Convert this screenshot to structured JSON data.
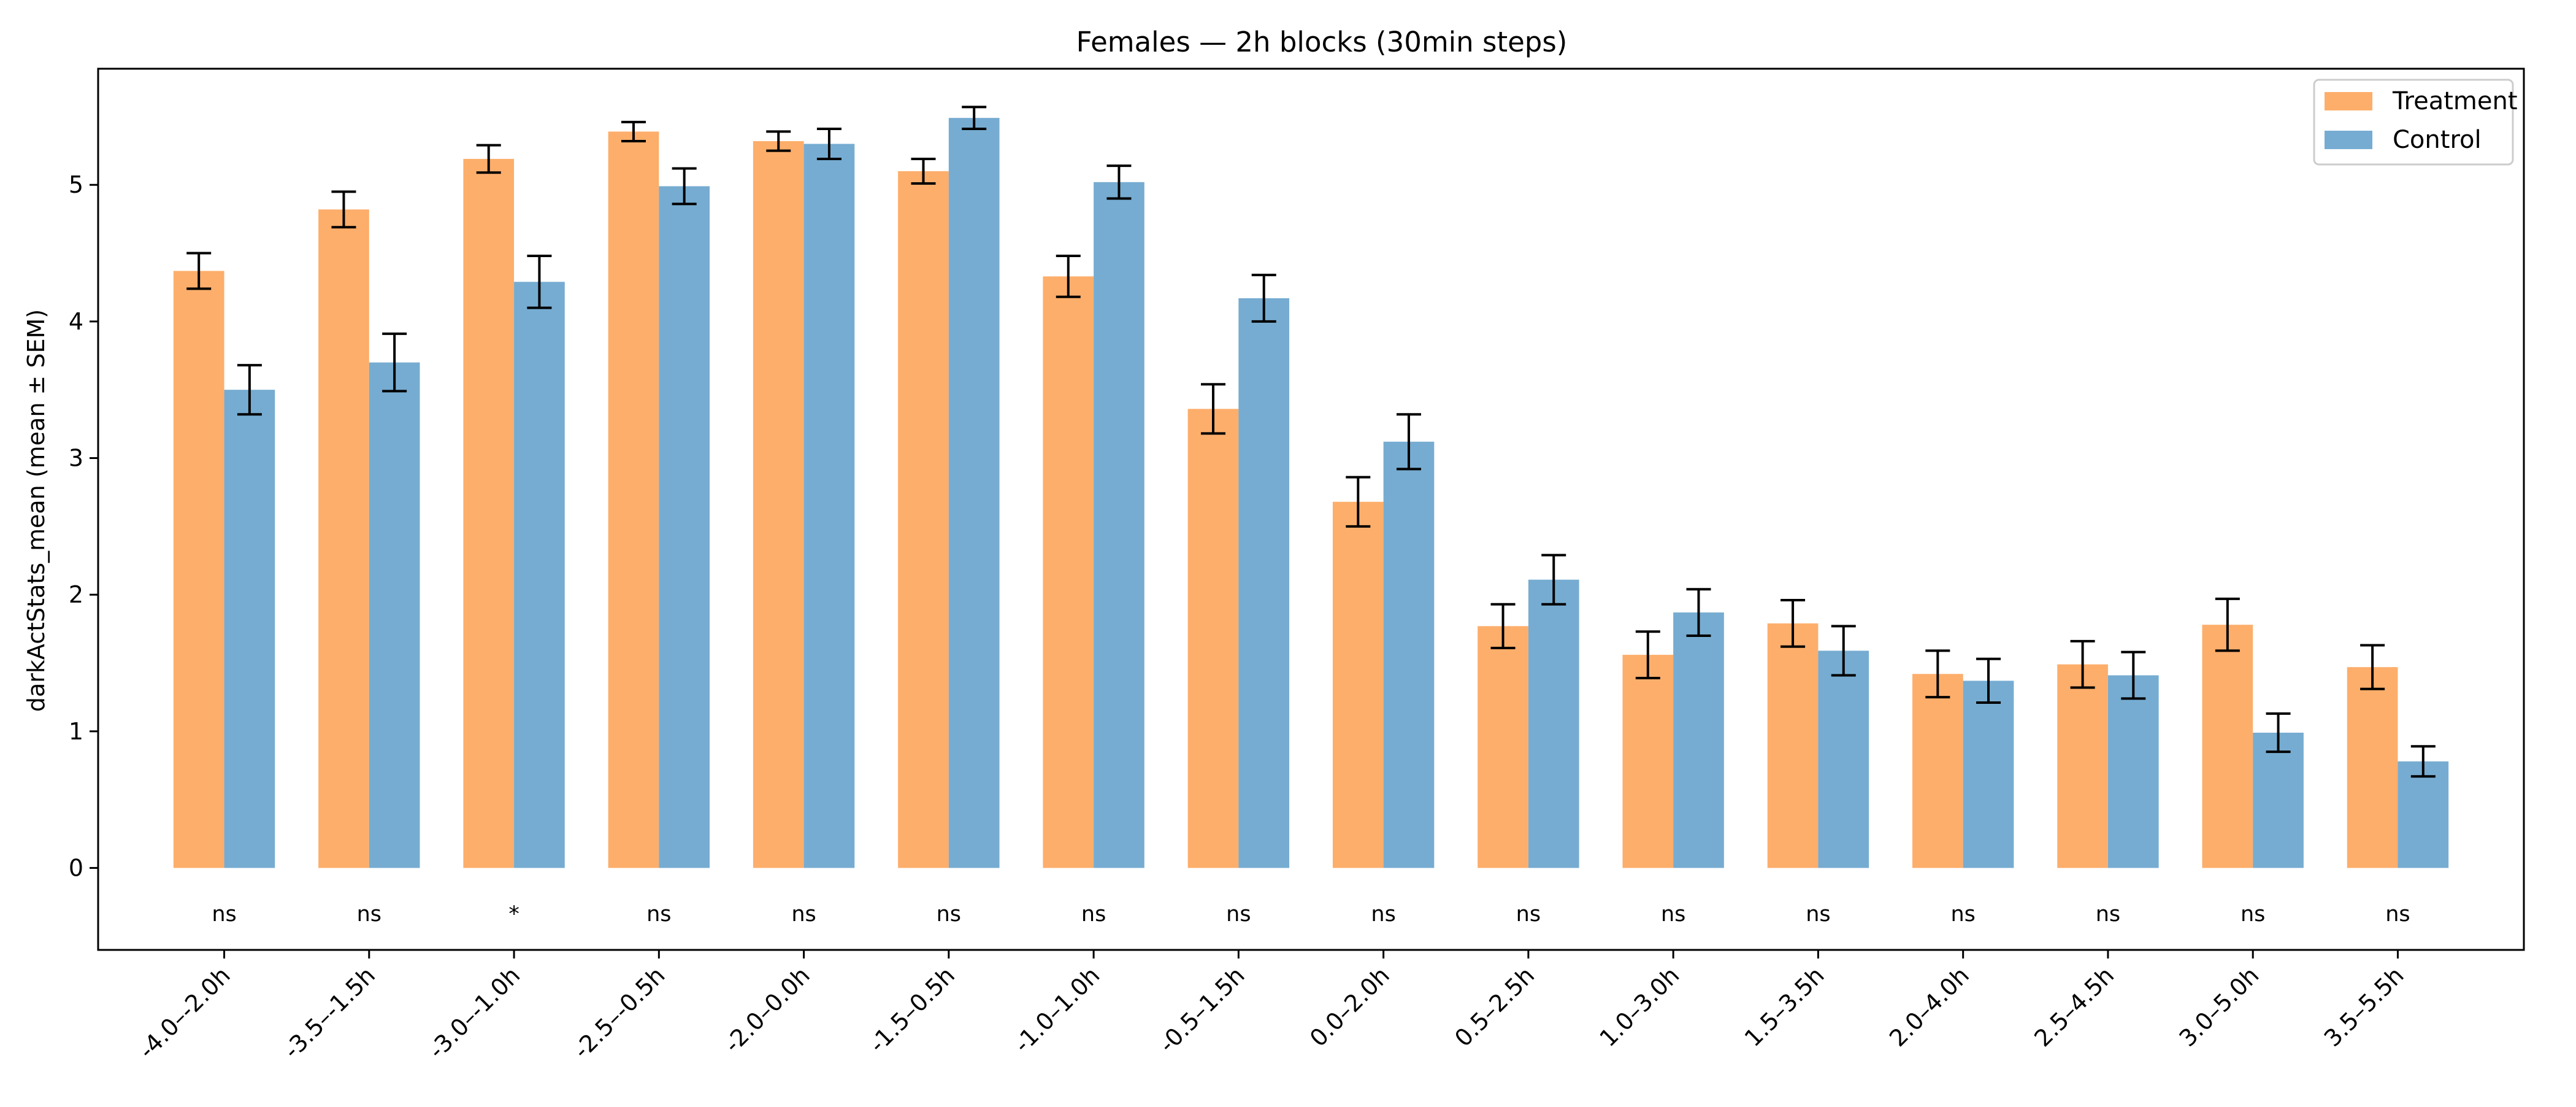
{
  "chart_data": {
    "type": "bar",
    "title": "Females — 2h blocks (30min steps)",
    "xlabel": "",
    "ylabel": "darkActStats_mean (mean ± SEM)",
    "ylim": [
      -0.6,
      5.85
    ],
    "yticks": [
      0,
      1,
      2,
      3,
      4,
      5
    ],
    "grid": false,
    "legend": "top-right",
    "categories": [
      "-4.0–-2.0h",
      "-3.5–-1.5h",
      "-3.0–-1.0h",
      "-2.5–-0.5h",
      "-2.0–0.0h",
      "-1.5–0.5h",
      "-1.0–1.0h",
      "-0.5–1.5h",
      "0.0–2.0h",
      "0.5–2.5h",
      "1.0–3.0h",
      "1.5–3.5h",
      "2.0–4.0h",
      "2.5–4.5h",
      "3.0–5.0h",
      "3.5–5.5h"
    ],
    "series": [
      {
        "name": "Treatment",
        "color": "#fdae6b",
        "values": [
          4.37,
          4.82,
          5.19,
          5.39,
          5.32,
          5.1,
          4.33,
          3.36,
          2.68,
          1.77,
          1.56,
          1.79,
          1.42,
          1.49,
          1.78,
          1.47
        ],
        "sem": [
          0.13,
          0.13,
          0.1,
          0.07,
          0.07,
          0.09,
          0.15,
          0.18,
          0.18,
          0.16,
          0.17,
          0.17,
          0.17,
          0.17,
          0.19,
          0.16
        ]
      },
      {
        "name": "Control",
        "color": "#76acd1",
        "values": [
          3.5,
          3.7,
          4.29,
          4.99,
          5.3,
          5.49,
          5.02,
          4.17,
          3.12,
          2.11,
          1.87,
          1.59,
          1.37,
          1.41,
          0.99,
          0.78
        ],
        "sem": [
          0.18,
          0.21,
          0.19,
          0.13,
          0.11,
          0.08,
          0.12,
          0.17,
          0.2,
          0.18,
          0.17,
          0.18,
          0.16,
          0.17,
          0.14,
          0.11
        ]
      }
    ],
    "significance": [
      "ns",
      "ns",
      "*",
      "ns",
      "ns",
      "ns",
      "ns",
      "ns",
      "ns",
      "ns",
      "ns",
      "ns",
      "ns",
      "ns",
      "ns",
      "ns"
    ]
  }
}
